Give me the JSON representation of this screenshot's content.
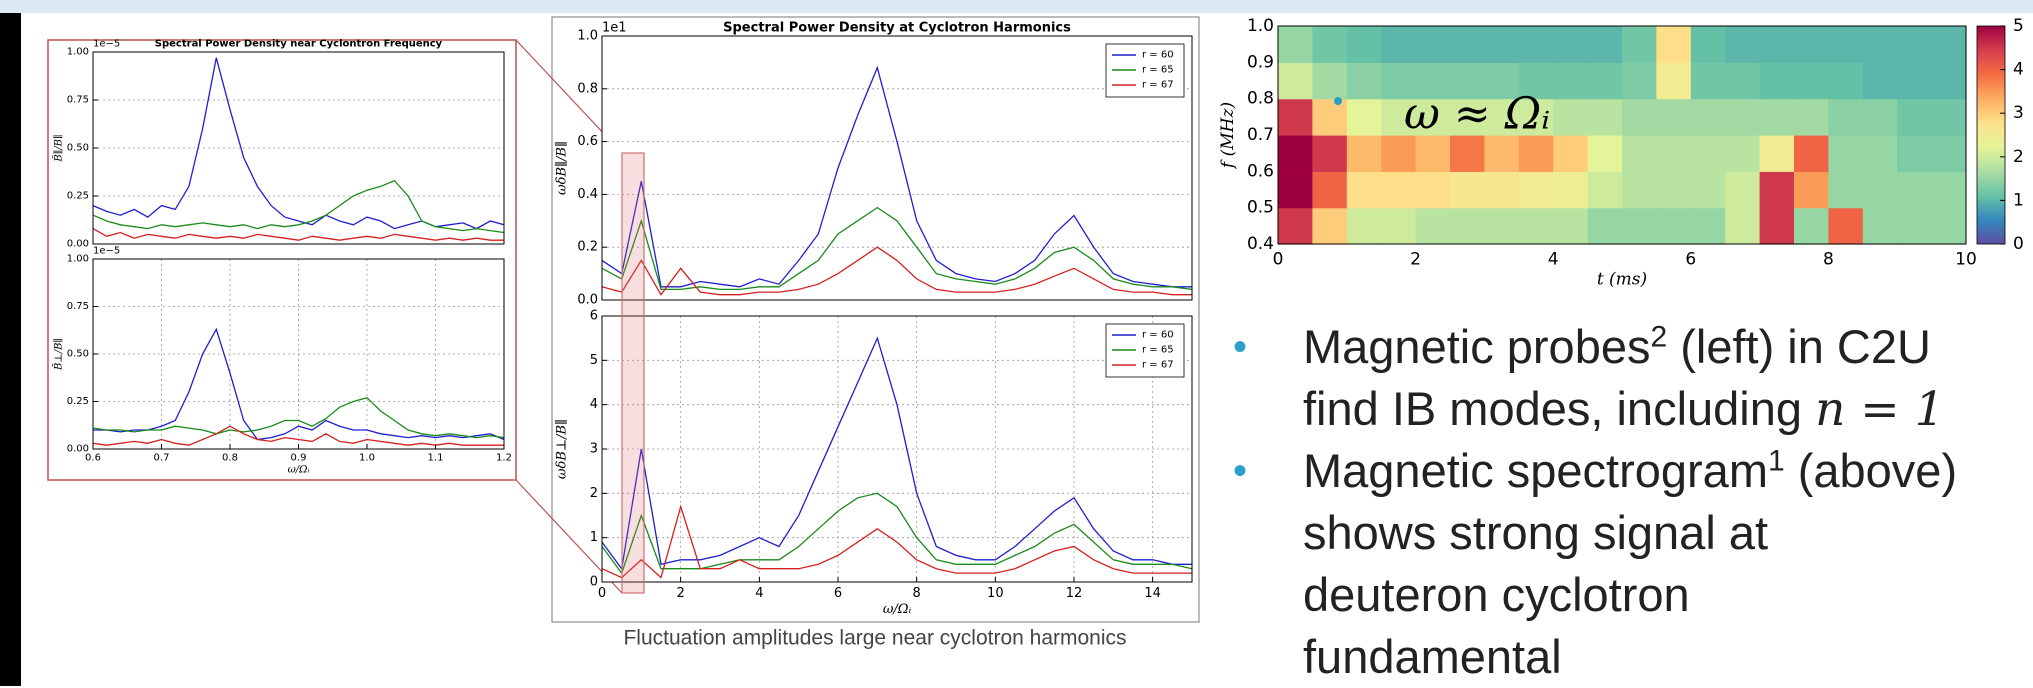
{
  "chart_data": [
    {
      "type": "line",
      "title": "Spectral Power Density near Cyclontron Frequency",
      "y_label": "B̃∥/B∥",
      "y_offset": "1e−5",
      "xlim": [
        0.6,
        1.2
      ],
      "ylim": [
        0,
        1
      ],
      "grid": true,
      "yticks": [
        {
          "value": 0,
          "label": "0.00"
        },
        0.25,
        {
          "value": 0.5,
          "label": "0.50"
        },
        0.75,
        {
          "value": 1,
          "label": "1.00"
        }
      ],
      "x": [
        0.6,
        0.62,
        0.64,
        0.66,
        0.68,
        0.7,
        0.72,
        0.74,
        0.76,
        0.78,
        0.8,
        0.82,
        0.84,
        0.86,
        0.88,
        0.9,
        0.92,
        0.94,
        0.96,
        0.98,
        1.0,
        1.02,
        1.04,
        1.06,
        1.08,
        1.1,
        1.12,
        1.14,
        1.16,
        1.18,
        1.2
      ],
      "series": [
        {
          "color": "#1f1fd0",
          "values": [
            0.2,
            0.17,
            0.15,
            0.18,
            0.14,
            0.2,
            0.18,
            0.3,
            0.6,
            0.97,
            0.7,
            0.45,
            0.3,
            0.2,
            0.14,
            0.12,
            0.1,
            0.15,
            0.12,
            0.1,
            0.14,
            0.12,
            0.08,
            0.1,
            0.12,
            0.09,
            0.1,
            0.11,
            0.08,
            0.12,
            0.1
          ]
        },
        {
          "color": "#1a8a1a",
          "values": [
            0.15,
            0.12,
            0.1,
            0.09,
            0.08,
            0.1,
            0.09,
            0.1,
            0.11,
            0.1,
            0.09,
            0.1,
            0.08,
            0.1,
            0.09,
            0.1,
            0.12,
            0.15,
            0.2,
            0.25,
            0.28,
            0.3,
            0.33,
            0.25,
            0.12,
            0.09,
            0.08,
            0.07,
            0.08,
            0.07,
            0.06
          ]
        },
        {
          "color": "#d62020",
          "values": [
            0.08,
            0.04,
            0.06,
            0.03,
            0.05,
            0.04,
            0.03,
            0.05,
            0.04,
            0.03,
            0.04,
            0.03,
            0.05,
            0.04,
            0.03,
            0.02,
            0.04,
            0.03,
            0.02,
            0.03,
            0.04,
            0.03,
            0.05,
            0.04,
            0.03,
            0.02,
            0.03,
            0.02,
            0.03,
            0.02,
            0.02
          ]
        }
      ]
    },
    {
      "type": "line",
      "y_label": "B̃⊥/B∥",
      "x_label": "ω/Ωᵢ",
      "y_offset": "1e−5",
      "xlim": [
        0.6,
        1.2
      ],
      "ylim": [
        0,
        1
      ],
      "grid": true,
      "xticks": [
        0.6,
        0.7,
        0.8,
        0.9,
        {
          "value": 1,
          "label": "1.0"
        },
        1.1,
        1.2
      ],
      "yticks": [
        {
          "value": 0,
          "label": "0.00"
        },
        0.25,
        {
          "value": 0.5,
          "label": "0.50"
        },
        0.75,
        {
          "value": 1,
          "label": "1.00"
        }
      ],
      "x": [
        0.6,
        0.62,
        0.64,
        0.66,
        0.68,
        0.7,
        0.72,
        0.74,
        0.76,
        0.78,
        0.8,
        0.82,
        0.84,
        0.86,
        0.88,
        0.9,
        0.92,
        0.94,
        0.96,
        0.98,
        1.0,
        1.02,
        1.04,
        1.06,
        1.08,
        1.1,
        1.12,
        1.14,
        1.16,
        1.18,
        1.2
      ],
      "series": [
        {
          "color": "#1f1fd0",
          "values": [
            0.1,
            0.1,
            0.09,
            0.1,
            0.1,
            0.12,
            0.15,
            0.3,
            0.5,
            0.63,
            0.4,
            0.15,
            0.05,
            0.06,
            0.08,
            0.12,
            0.1,
            0.15,
            0.12,
            0.1,
            0.1,
            0.08,
            0.07,
            0.06,
            0.07,
            0.06,
            0.07,
            0.06,
            0.07,
            0.08,
            0.05
          ]
        },
        {
          "color": "#1a8a1a",
          "values": [
            0.11,
            0.1,
            0.1,
            0.09,
            0.1,
            0.1,
            0.12,
            0.11,
            0.1,
            0.08,
            0.1,
            0.09,
            0.1,
            0.12,
            0.15,
            0.15,
            0.12,
            0.16,
            0.22,
            0.25,
            0.27,
            0.2,
            0.15,
            0.1,
            0.08,
            0.07,
            0.08,
            0.07,
            0.06,
            0.07,
            0.06
          ]
        },
        {
          "color": "#d62020",
          "values": [
            0.03,
            0.02,
            0.03,
            0.04,
            0.03,
            0.05,
            0.03,
            0.02,
            0.05,
            0.08,
            0.12,
            0.08,
            0.05,
            0.04,
            0.06,
            0.05,
            0.04,
            0.08,
            0.04,
            0.03,
            0.05,
            0.04,
            0.03,
            0.02,
            0.03,
            0.02,
            0.03,
            0.02,
            0.02,
            0.02,
            0.02
          ]
        }
      ]
    },
    {
      "type": "line",
      "title": "Spectral Power Density at Cyclotron Harmonics",
      "y_label": "ωδB∥/B∥",
      "y_offset": "1e1",
      "xlim": [
        0,
        15
      ],
      "ylim": [
        0,
        1
      ],
      "grid": true,
      "legend": "upper right",
      "yticks": [
        {
          "value": 0,
          "label": "0.0"
        },
        0.2,
        0.4,
        0.6,
        0.8,
        {
          "value": 1,
          "label": "1.0"
        }
      ],
      "x": [
        0,
        0.5,
        1,
        1.5,
        2,
        2.5,
        3,
        3.5,
        4,
        4.5,
        5,
        5.5,
        6,
        6.5,
        7,
        7.5,
        8,
        8.5,
        9,
        9.5,
        10,
        10.5,
        11,
        11.5,
        12,
        12.5,
        13,
        13.5,
        14,
        14.5,
        15
      ],
      "series": [
        {
          "name": "r = 60",
          "color": "#1f1fd0",
          "values": [
            0.15,
            0.1,
            0.45,
            0.05,
            0.05,
            0.07,
            0.06,
            0.05,
            0.08,
            0.06,
            0.15,
            0.25,
            0.5,
            0.7,
            0.88,
            0.6,
            0.3,
            0.15,
            0.1,
            0.08,
            0.07,
            0.1,
            0.15,
            0.25,
            0.32,
            0.2,
            0.1,
            0.07,
            0.06,
            0.05,
            0.05
          ]
        },
        {
          "name": "r = 65",
          "color": "#1a8a1a",
          "values": [
            0.12,
            0.08,
            0.3,
            0.04,
            0.04,
            0.05,
            0.04,
            0.04,
            0.05,
            0.05,
            0.1,
            0.15,
            0.25,
            0.3,
            0.35,
            0.3,
            0.2,
            0.1,
            0.08,
            0.07,
            0.06,
            0.08,
            0.12,
            0.18,
            0.2,
            0.15,
            0.08,
            0.06,
            0.05,
            0.05,
            0.04
          ]
        },
        {
          "name": "r = 67",
          "color": "#d62020",
          "values": [
            0.05,
            0.03,
            0.15,
            0.02,
            0.12,
            0.03,
            0.02,
            0.02,
            0.03,
            0.03,
            0.04,
            0.06,
            0.1,
            0.15,
            0.2,
            0.15,
            0.08,
            0.04,
            0.03,
            0.03,
            0.03,
            0.04,
            0.06,
            0.09,
            0.12,
            0.08,
            0.04,
            0.03,
            0.03,
            0.02,
            0.02
          ]
        }
      ]
    },
    {
      "type": "line",
      "y_label": "ωδB⊥/B∥",
      "x_label": "ω/Ωᵢ",
      "xlim": [
        0,
        15
      ],
      "ylim": [
        0,
        6
      ],
      "grid": true,
      "legend": "upper right",
      "xticks": [
        0,
        2,
        4,
        6,
        8,
        10,
        12,
        14
      ],
      "yticks": [
        0,
        1,
        2,
        3,
        4,
        5,
        6
      ],
      "x": [
        0,
        0.5,
        1,
        1.5,
        2,
        2.5,
        3,
        3.5,
        4,
        4.5,
        5,
        5.5,
        6,
        6.5,
        7,
        7.5,
        8,
        8.5,
        9,
        9.5,
        10,
        10.5,
        11,
        11.5,
        12,
        12.5,
        13,
        13.5,
        14,
        14.5,
        15
      ],
      "series": [
        {
          "name": "r = 60",
          "color": "#1f1fd0",
          "values": [
            0.9,
            0.3,
            3.0,
            0.4,
            0.5,
            0.5,
            0.6,
            0.8,
            1.0,
            0.8,
            1.5,
            2.5,
            3.5,
            4.5,
            5.5,
            4.0,
            2.0,
            0.8,
            0.6,
            0.5,
            0.5,
            0.8,
            1.2,
            1.6,
            1.9,
            1.2,
            0.7,
            0.5,
            0.5,
            0.4,
            0.4
          ]
        },
        {
          "name": "r = 65",
          "color": "#1a8a1a",
          "values": [
            0.8,
            0.2,
            1.5,
            0.3,
            0.3,
            0.3,
            0.4,
            0.5,
            0.5,
            0.5,
            0.8,
            1.2,
            1.6,
            1.9,
            2.0,
            1.7,
            1.0,
            0.5,
            0.4,
            0.4,
            0.4,
            0.6,
            0.8,
            1.1,
            1.3,
            0.9,
            0.5,
            0.4,
            0.4,
            0.4,
            0.3
          ]
        },
        {
          "name": "r = 67",
          "color": "#d62020",
          "values": [
            0.3,
            0.1,
            0.5,
            0.1,
            1.7,
            0.3,
            0.3,
            0.5,
            0.3,
            0.3,
            0.3,
            0.4,
            0.6,
            0.9,
            1.2,
            0.9,
            0.5,
            0.3,
            0.2,
            0.2,
            0.2,
            0.3,
            0.5,
            0.7,
            0.8,
            0.5,
            0.3,
            0.2,
            0.2,
            0.2,
            0.2
          ]
        }
      ]
    },
    {
      "type": "heatmap",
      "x_label": "t (ms)",
      "y_label": "f (MHz)",
      "annotation": "ω ≈ Ωᵢ",
      "xlim": [
        0,
        10
      ],
      "ylim": [
        0.4,
        1.0
      ],
      "xticks": [
        0,
        2,
        4,
        6,
        8,
        10
      ],
      "yticks": [
        0.4,
        0.5,
        0.6,
        0.7,
        0.8,
        0.9,
        {
          "value": 1,
          "label": "1.0"
        }
      ],
      "xbins": [
        0,
        0.5,
        1,
        1.5,
        2,
        2.5,
        3,
        3.5,
        4,
        4.5,
        5,
        5.5,
        6,
        6.5,
        7,
        7.5,
        8,
        8.5,
        9,
        9.5,
        10
      ],
      "ybins": [
        0.4,
        0.5,
        0.6,
        0.7,
        0.8,
        0.9,
        1.0
      ],
      "z": [
        [
          4.5,
          3,
          2,
          2,
          1.8,
          1.8,
          1.8,
          1.8,
          1.8,
          1.5,
          1.5,
          1.5,
          1.5,
          2,
          4.5,
          1.5,
          4,
          1.5,
          1.5,
          1.5
        ],
        [
          5,
          4,
          2.8,
          2.8,
          2.8,
          2.6,
          2.6,
          2.5,
          2.4,
          2,
          1.8,
          1.8,
          1.8,
          2,
          4.5,
          3.5,
          1.5,
          1.5,
          1.5,
          1.5
        ],
        [
          5,
          4.5,
          3.2,
          3.5,
          3.2,
          3.8,
          3.2,
          3.5,
          3,
          2.2,
          1.8,
          1.8,
          1.8,
          1.8,
          2.5,
          4,
          1.5,
          1.5,
          1.3,
          1.3
        ],
        [
          4.5,
          3,
          2.2,
          2,
          2,
          2,
          2,
          2,
          1.8,
          1.8,
          1.6,
          1.6,
          1.6,
          1.6,
          1.6,
          1.6,
          1.4,
          1.4,
          1.2,
          1.2
        ],
        [
          2,
          1.6,
          1.4,
          1.3,
          1.3,
          1.3,
          1.3,
          1.2,
          1.2,
          1.2,
          1.3,
          2.5,
          1.2,
          1.2,
          1.1,
          1.1,
          1.1,
          1,
          1,
          1
        ],
        [
          1.5,
          1.2,
          1.1,
          1,
          1,
          1,
          1,
          1,
          1,
          1,
          1.2,
          2.8,
          1.1,
          1,
          1,
          1,
          1,
          1,
          1,
          1
        ]
      ],
      "clim": [
        0,
        5
      ],
      "cticks": [
        0,
        1,
        2,
        3,
        4,
        5
      ],
      "colormap": [
        "#5e4fa2",
        "#3288bd",
        "#66c2a5",
        "#abdda4",
        "#e6f598",
        "#fee08b",
        "#fdae61",
        "#f46d43",
        "#d53e4f",
        "#9e0142"
      ]
    }
  ],
  "slide": {
    "caption": "Fluctuation amplitudes large near cyclotron harmonics",
    "bullets": [
      [
        [
          {
            "t": "Magnetic probes"
          },
          {
            "t": "2",
            "sup": true
          },
          {
            "t": " (left) in C2U"
          }
        ],
        [
          {
            "t": "find IB modes, including "
          },
          {
            "t": "n = 1",
            "math": true
          }
        ]
      ],
      [
        [
          {
            "t": "Magnetic spectrogram"
          },
          {
            "t": "1",
            "sup": true
          },
          {
            "t": " (above)"
          }
        ],
        [
          {
            "t": "shows strong signal at"
          }
        ],
        [
          {
            "t": "deuteron cyclotron"
          }
        ],
        [
          {
            "t": "fundamental"
          }
        ]
      ]
    ]
  }
}
